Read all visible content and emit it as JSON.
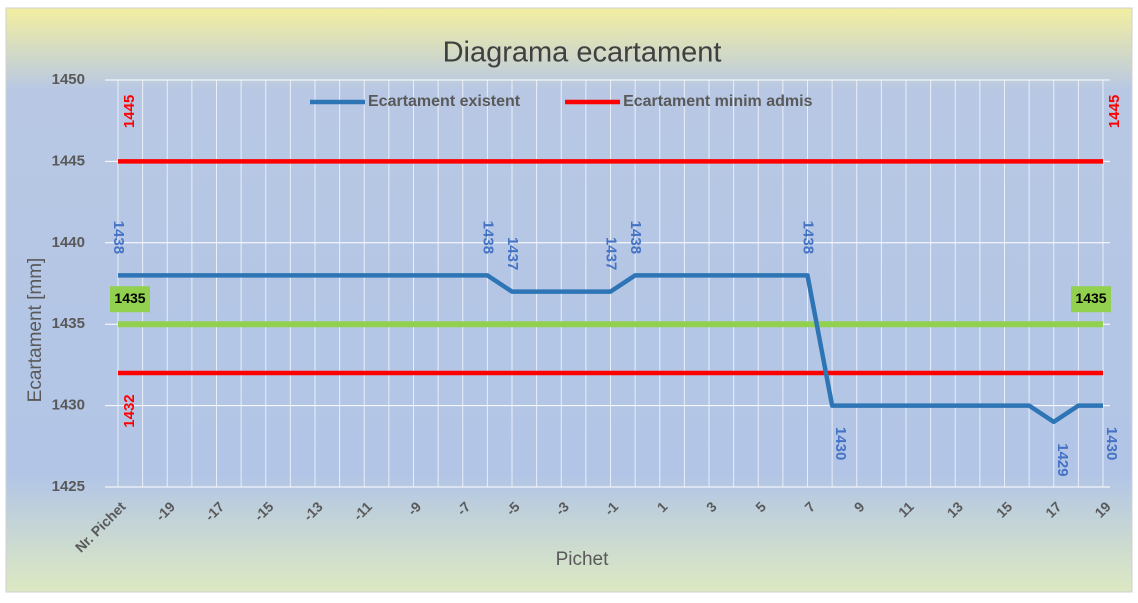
{
  "chart_data": {
    "type": "line",
    "title": "Diagrama ecartament",
    "x_label": "Pichet",
    "y_label": "Ecartament [mm]",
    "categories": [
      "Nr. Pichet",
      null,
      "-19",
      null,
      "-17",
      null,
      "-15",
      null,
      "-13",
      null,
      "-11",
      null,
      "-9",
      null,
      "-7",
      null,
      "-5",
      null,
      "-3",
      null,
      "-1",
      null,
      "1",
      null,
      "3",
      null,
      "5",
      null,
      "7",
      null,
      "9",
      null,
      "11",
      null,
      "13",
      null,
      "15",
      null,
      "17",
      null,
      "19"
    ],
    "series": [
      {
        "name": "Ecartament existent",
        "color": "#2e75b6",
        "values": [
          1438,
          1438,
          1438,
          1438,
          1438,
          1438,
          1438,
          1438,
          1438,
          1438,
          1438,
          1438,
          1438,
          1438,
          1438,
          1438,
          1437,
          1437,
          1437,
          1437,
          1437,
          1438,
          1438,
          1438,
          1438,
          1438,
          1438,
          1438,
          1438,
          1430,
          1430,
          1430,
          1430,
          1430,
          1430,
          1430,
          1430,
          1430,
          1429,
          1430,
          1430
        ],
        "value_labels": [
          "1438",
          null,
          null,
          null,
          null,
          null,
          null,
          null,
          null,
          null,
          null,
          null,
          null,
          null,
          null,
          "1438",
          "1437",
          null,
          null,
          null,
          "1437",
          "1438",
          null,
          null,
          null,
          null,
          null,
          null,
          "1438",
          "1430",
          null,
          null,
          null,
          null,
          null,
          null,
          null,
          null,
          "1429",
          null,
          "1430"
        ]
      },
      {
        "name": "Ecartament minim admis",
        "color": "#ff0000",
        "values": [
          1432,
          1432,
          1432,
          1432,
          1432,
          1432,
          1432,
          1432,
          1432,
          1432,
          1432,
          1432,
          1432,
          1432,
          1432,
          1432,
          1432,
          1432,
          1432,
          1432,
          1432,
          1432,
          1432,
          1432,
          1432,
          1432,
          1432,
          1432,
          1432,
          1432,
          1432,
          1432,
          1432,
          1432,
          1432,
          1432,
          1432,
          1432,
          1432,
          1432,
          1432
        ],
        "value_labels": [
          "1432",
          null,
          null,
          null,
          null,
          null,
          null,
          null,
          null,
          null,
          null,
          null,
          null,
          null,
          null,
          null,
          null,
          null,
          null,
          null,
          null,
          null,
          null,
          null,
          null,
          null,
          null,
          null,
          null,
          null,
          null,
          null,
          null,
          null,
          null,
          null,
          null,
          null,
          null,
          null,
          null
        ]
      },
      {
        "name": null,
        "color": "#ff0000",
        "values": [
          1445,
          1445,
          1445,
          1445,
          1445,
          1445,
          1445,
          1445,
          1445,
          1445,
          1445,
          1445,
          1445,
          1445,
          1445,
          1445,
          1445,
          1445,
          1445,
          1445,
          1445,
          1445,
          1445,
          1445,
          1445,
          1445,
          1445,
          1445,
          1445,
          1445,
          1445,
          1445,
          1445,
          1445,
          1445,
          1445,
          1445,
          1445,
          1445,
          1445,
          1445
        ],
        "value_labels": [
          "1445",
          null,
          null,
          null,
          null,
          null,
          null,
          null,
          null,
          null,
          null,
          null,
          null,
          null,
          null,
          null,
          null,
          null,
          null,
          null,
          null,
          null,
          null,
          null,
          null,
          null,
          null,
          null,
          null,
          null,
          null,
          null,
          null,
          null,
          null,
          null,
          null,
          null,
          null,
          null,
          "1445"
        ]
      },
      {
        "name": null,
        "color": "#92d050",
        "values": [
          1435,
          1435,
          1435,
          1435,
          1435,
          1435,
          1435,
          1435,
          1435,
          1435,
          1435,
          1435,
          1435,
          1435,
          1435,
          1435,
          1435,
          1435,
          1435,
          1435,
          1435,
          1435,
          1435,
          1435,
          1435,
          1435,
          1435,
          1435,
          1435,
          1435,
          1435,
          1435,
          1435,
          1435,
          1435,
          1435,
          1435,
          1435,
          1435,
          1435,
          1435
        ],
        "value_labels": [
          "1435",
          null,
          null,
          null,
          null,
          null,
          null,
          null,
          null,
          null,
          null,
          null,
          null,
          null,
          null,
          null,
          null,
          null,
          null,
          null,
          null,
          null,
          null,
          null,
          null,
          null,
          null,
          null,
          null,
          null,
          null,
          null,
          null,
          null,
          null,
          null,
          null,
          null,
          null,
          null,
          "1435"
        ]
      }
    ],
    "ylim": [
      1425,
      1450
    ],
    "yticks": [
      1425,
      1430,
      1435,
      1440,
      1445,
      1450
    ],
    "grid": true
  }
}
